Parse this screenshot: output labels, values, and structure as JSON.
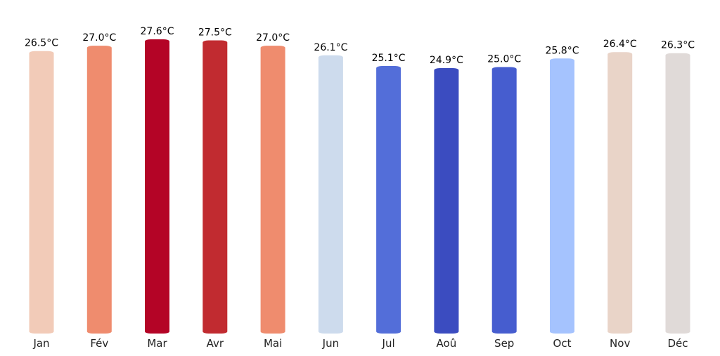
{
  "chart_data": {
    "type": "bar",
    "title": "",
    "xlabel": "",
    "ylabel": "",
    "categories": [
      "Jan",
      "Fév",
      "Mar",
      "Avr",
      "Mai",
      "Jun",
      "Jul",
      "Aoû",
      "Sep",
      "Oct",
      "Nov",
      "Déc"
    ],
    "values": [
      26.5,
      27.0,
      27.6,
      27.5,
      27.0,
      26.1,
      25.1,
      24.9,
      25.0,
      25.8,
      26.4,
      26.3
    ],
    "value_labels": [
      "26.5°C",
      "27.0°C",
      "27.6°C",
      "27.5°C",
      "27.0°C",
      "26.1°C",
      "25.1°C",
      "24.9°C",
      "25.0°C",
      "25.8°C",
      "26.4°C",
      "26.3°C"
    ],
    "unit": "°C",
    "colors": [
      "#f2cbb8",
      "#ef8c6e",
      "#b40426",
      "#c12b30",
      "#ef8c6e",
      "#cddbed",
      "#536ed9",
      "#3b4cc0",
      "#465dcf",
      "#a5c3fe",
      "#e9d4c8",
      "#e0dad8"
    ],
    "ylim": [
      0,
      27.6
    ],
    "grid": false,
    "legend": "none"
  }
}
